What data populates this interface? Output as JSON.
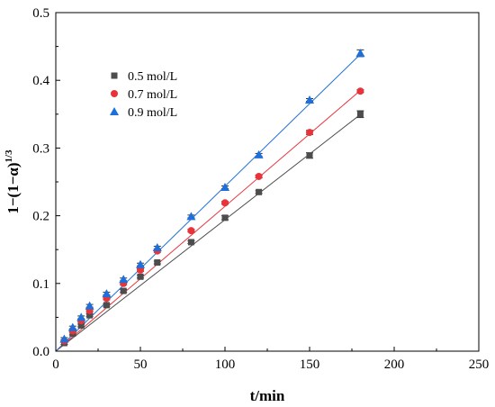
{
  "chart_data": {
    "type": "scatter",
    "xlabel": "t/min",
    "ylabel_main": "1−(1−α)",
    "ylabel_sup": "1/3",
    "xlim": [
      0,
      250
    ],
    "ylim": [
      0,
      0.5
    ],
    "x_ticks": [
      0,
      50,
      100,
      150,
      200,
      250
    ],
    "x_tick_labels": [
      "0",
      "50",
      "100",
      "150",
      "200",
      "250"
    ],
    "y_ticks": [
      0,
      0.1,
      0.2,
      0.3,
      0.4,
      0.5
    ],
    "y_tick_labels": [
      "0.0",
      "0.1",
      "0.2",
      "0.3",
      "0.4",
      "0.5"
    ],
    "grid": false,
    "legend_position": "top-left",
    "x": [
      5,
      10,
      15,
      20,
      30,
      40,
      50,
      60,
      80,
      100,
      120,
      150,
      180
    ],
    "series": [
      {
        "name": "0.5 mol/L",
        "marker": "square",
        "color": "#4d4d4d",
        "values": [
          0.012,
          0.026,
          0.038,
          0.053,
          0.068,
          0.089,
          0.11,
          0.131,
          0.161,
          0.197,
          0.235,
          0.289,
          0.35
        ],
        "error": [
          0.002,
          0.002,
          0.002,
          0.002,
          0.002,
          0.002,
          0.002,
          0.002,
          0.002,
          0.003,
          0.002,
          0.004,
          0.005
        ],
        "fit": [
          0,
          0.3495
        ]
      },
      {
        "name": "0.7 mol/L",
        "marker": "circle",
        "color": "#e8333b",
        "values": [
          0.015,
          0.03,
          0.045,
          0.06,
          0.078,
          0.1,
          0.12,
          0.148,
          0.178,
          0.219,
          0.258,
          0.323,
          0.384
        ],
        "error": [
          0.002,
          0.002,
          0.002,
          0.002,
          0.002,
          0.002,
          0.002,
          0.002,
          0.002,
          0.002,
          0.002,
          0.003,
          0.002
        ],
        "fit": [
          0,
          0.385
        ]
      },
      {
        "name": "0.9 mol/L",
        "marker": "triangle",
        "color": "#1e6fd9",
        "values": [
          0.018,
          0.035,
          0.05,
          0.067,
          0.085,
          0.106,
          0.128,
          0.153,
          0.199,
          0.242,
          0.29,
          0.371,
          0.44
        ],
        "error": [
          0.002,
          0.002,
          0.002,
          0.002,
          0.002,
          0.002,
          0.002,
          0.002,
          0.002,
          0.002,
          0.002,
          0.002,
          0.005
        ],
        "fit": [
          0,
          0.4385
        ]
      }
    ]
  }
}
